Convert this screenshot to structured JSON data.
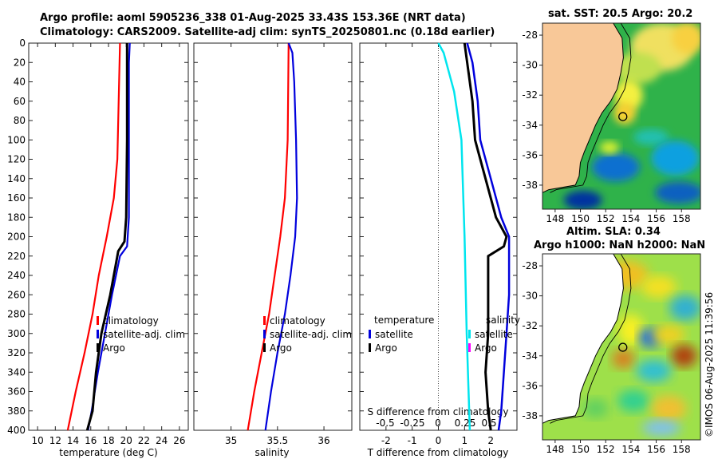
{
  "titles": {
    "main_line1": "Argo profile: aoml 5905236_338 01-Aug-2025 33.43S 153.36E (NRT data)",
    "main_line2": "Climatology: CARS2009. Satellite-adj clim: synTS_20250801.nc (0.18d earlier)",
    "map_top": "sat. SST: 20.5 Argo: 20.2",
    "map_bottom_line1": "Altim. SLA: 0.34",
    "map_bottom_line2": "Argo h1000: NaN h2000: NaN"
  },
  "copyright": "©IMOS 06-Aug-2025 11:39:56",
  "colors": {
    "climatology": "#ff0000",
    "satellite": "#0000dd",
    "argo": "#000000",
    "sal_satellite": "#00e5ee",
    "sal_argo": "#ff00ff",
    "land": "#f8c898"
  },
  "chart_data": [
    {
      "type": "line",
      "name": "temperature-profile",
      "xlabel": "temperature (deg C)",
      "ylabel": "",
      "xlim": [
        9,
        27
      ],
      "ylim": [
        400,
        0
      ],
      "xticks": [
        10,
        12,
        14,
        16,
        18,
        20,
        22,
        24,
        26
      ],
      "yticks": [
        0,
        20,
        40,
        60,
        80,
        100,
        120,
        140,
        160,
        180,
        200,
        220,
        240,
        260,
        280,
        300,
        320,
        340,
        360,
        380,
        400
      ],
      "legend": [
        "climatology",
        "satellite-adj. clim",
        "Argo"
      ],
      "series": [
        {
          "name": "climatology",
          "depth": [
            0,
            40,
            80,
            120,
            160,
            200,
            240,
            280,
            320,
            360,
            400
          ],
          "values": [
            19.3,
            19.2,
            19.1,
            19.0,
            18.6,
            17.8,
            16.9,
            16.2,
            15.3,
            14.3,
            13.4
          ]
        },
        {
          "name": "satellite-adj. clim",
          "depth": [
            0,
            20,
            180,
            210,
            220,
            260,
            300,
            340,
            380,
            400
          ],
          "values": [
            20.4,
            20.3,
            20.3,
            20.1,
            19.3,
            18.4,
            17.6,
            16.8,
            16.1,
            15.7
          ]
        },
        {
          "name": "Argo",
          "depth": [
            0,
            100,
            180,
            205,
            215,
            230,
            260,
            300,
            340,
            380,
            400
          ],
          "values": [
            20.1,
            20.1,
            20.0,
            19.8,
            19.1,
            18.8,
            18.2,
            17.2,
            16.6,
            16.2,
            15.6
          ]
        }
      ]
    },
    {
      "type": "line",
      "name": "salinity-profile",
      "xlabel": "salinity",
      "xlim": [
        34.6,
        36.3
      ],
      "ylim": [
        400,
        0
      ],
      "xticks": [
        35,
        35.5,
        36
      ],
      "legend": [
        "climatology",
        "satellite-adj. clim",
        "Argo"
      ],
      "series": [
        {
          "name": "climatology",
          "depth": [
            0,
            100,
            160,
            200,
            240,
            280,
            320,
            360,
            400
          ],
          "values": [
            35.62,
            35.61,
            35.58,
            35.53,
            35.47,
            35.41,
            35.33,
            35.25,
            35.18
          ]
        },
        {
          "name": "satellite-adj. clim",
          "depth": [
            0,
            10,
            40,
            100,
            160,
            200,
            240,
            280,
            320,
            360,
            400
          ],
          "values": [
            35.62,
            35.66,
            35.68,
            35.7,
            35.71,
            35.69,
            35.64,
            35.58,
            35.5,
            35.43,
            35.37
          ]
        },
        {
          "name": "Argo",
          "depth": [
            0,
            400
          ],
          "values": [
            null,
            null
          ]
        }
      ]
    },
    {
      "type": "line",
      "name": "difference-from-climatology",
      "xlabel": "T difference from climatology",
      "xlabel2": "S difference from climatology",
      "xlim": [
        -3,
        3
      ],
      "ylim": [
        400,
        0
      ],
      "xticks": [
        -2,
        -1,
        0,
        1,
        2
      ],
      "xticks2_labels": [
        "-0.5",
        "-0.25",
        "0",
        "0.25",
        "0.5"
      ],
      "legend_headers": [
        "temperature",
        "salinity"
      ],
      "legend": [
        "satellite",
        "Argo",
        "satellite",
        "Argo"
      ],
      "series": [
        {
          "name": "T satellite",
          "depth": [
            0,
            20,
            60,
            100,
            140,
            180,
            200,
            220,
            260,
            300,
            340,
            380,
            400
          ],
          "values": [
            1.1,
            1.3,
            1.5,
            1.6,
            2.0,
            2.4,
            2.7,
            2.7,
            2.7,
            2.6,
            2.5,
            2.4,
            2.3
          ]
        },
        {
          "name": "T Argo",
          "depth": [
            0,
            20,
            60,
            100,
            140,
            180,
            200,
            210,
            220,
            260,
            300,
            340,
            380,
            400
          ],
          "values": [
            1.0,
            1.1,
            1.3,
            1.4,
            1.8,
            2.2,
            2.6,
            2.5,
            1.9,
            1.9,
            1.9,
            1.8,
            1.9,
            2.0
          ]
        },
        {
          "name": "S satellite",
          "depth": [
            0,
            10,
            50,
            100,
            200,
            300,
            400
          ],
          "values": [
            0.0,
            0.05,
            0.15,
            0.22,
            0.25,
            0.27,
            0.3
          ]
        },
        {
          "name": "S Argo",
          "depth": [
            0,
            400
          ],
          "values": [
            null,
            null
          ]
        }
      ]
    },
    {
      "type": "heatmap",
      "name": "sst-map",
      "title": "sat. SST: 20.5 Argo: 20.2",
      "xlim": [
        147,
        159.5
      ],
      "ylim": [
        -39.6,
        -27.2
      ],
      "xticks": [
        148,
        150,
        152,
        154,
        156,
        158
      ],
      "yticks": [
        -28,
        -30,
        -32,
        -34,
        -36,
        -38
      ],
      "argo_position": {
        "lon": 153.36,
        "lat": -33.43
      }
    },
    {
      "type": "heatmap",
      "name": "sla-map",
      "title": "Altim. SLA: 0.34",
      "xlim": [
        147,
        159.5
      ],
      "ylim": [
        -39.6,
        -27.2
      ],
      "xticks": [
        148,
        150,
        152,
        154,
        156,
        158
      ],
      "yticks": [
        -28,
        -30,
        -32,
        -34,
        -36,
        -38
      ],
      "argo_position": {
        "lon": 153.36,
        "lat": -33.43
      }
    }
  ]
}
